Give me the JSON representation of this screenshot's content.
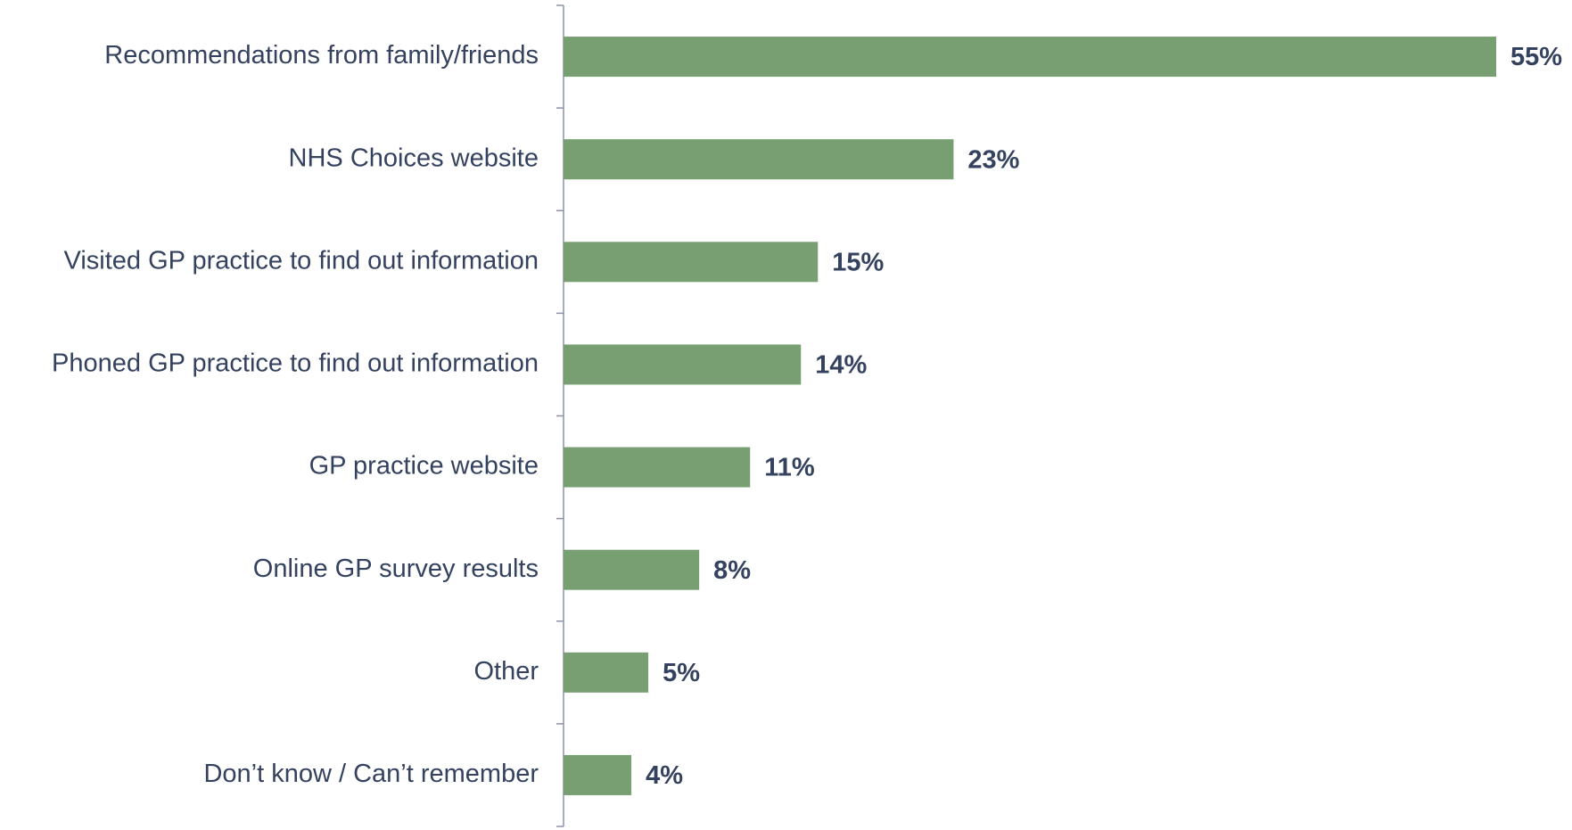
{
  "chart_data": {
    "type": "bar",
    "orientation": "horizontal",
    "categories": [
      "Recommendations from family/friends",
      "NHS Choices website",
      "Visited GP practice to find out information",
      "Phoned GP practice to find out information",
      "GP practice website",
      "Online GP survey results",
      "Other",
      "Don’t know / Can’t remember"
    ],
    "values": [
      55,
      23,
      15,
      14,
      11,
      8,
      5,
      4
    ],
    "value_labels": [
      "55%",
      "23%",
      "15%",
      "14%",
      "11%",
      "8%",
      "5%",
      "4%"
    ],
    "color": "#779f72"
  }
}
